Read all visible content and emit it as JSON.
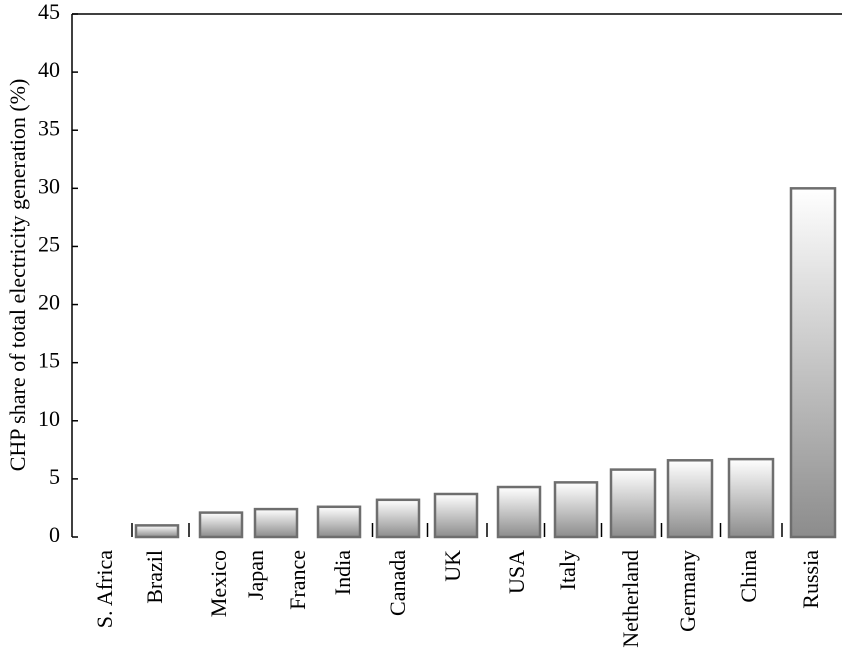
{
  "chart_data": {
    "type": "bar",
    "y_label": "CHP share of total electricity generation (%)",
    "categories": [
      "S. Africa",
      "Brazil",
      "Mexico",
      "Japan",
      "France",
      "India",
      "Canada",
      "UK",
      "USA",
      "Italy",
      "Netherland",
      "Germany",
      "China",
      "Russia"
    ],
    "values": [
      0,
      1.0,
      2.1,
      2.4,
      null,
      2.6,
      3.2,
      3.7,
      4.3,
      4.7,
      5.8,
      6.6,
      6.7,
      30.0
    ],
    "color": "#8c8c8c",
    "ylim": [
      0,
      45
    ],
    "yticks": [
      0,
      5,
      10,
      15,
      20,
      25,
      30,
      35,
      40,
      45
    ]
  }
}
